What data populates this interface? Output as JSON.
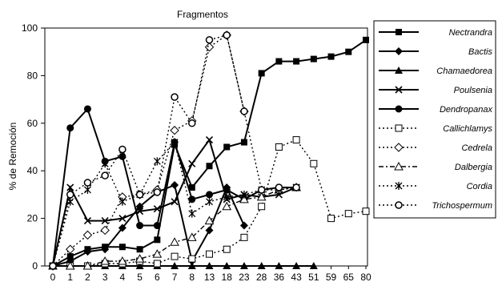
{
  "chart_data": {
    "type": "line",
    "title": "Fragmentos",
    "ylabel": "% de Remoción",
    "xlabel": "",
    "categories": [
      "0",
      "1",
      "2",
      "3",
      "4",
      "5",
      "6",
      "7",
      "8",
      "13",
      "18",
      "23",
      "28",
      "36",
      "43",
      "51",
      "59",
      "65",
      "80"
    ],
    "ylim": [
      0,
      100
    ],
    "yticks": [
      0,
      20,
      40,
      60,
      80,
      100
    ],
    "grid": false,
    "legend_position": "right",
    "series": [
      {
        "name": "Nectrandra",
        "style": "solid",
        "marker": "filled-square",
        "values": [
          0,
          4,
          7,
          8,
          8,
          7,
          11,
          51,
          33,
          42,
          50,
          52,
          81,
          86,
          86,
          87,
          88,
          90,
          95
        ]
      },
      {
        "name": "Bactis",
        "style": "solid",
        "marker": "filled-diamond",
        "values": [
          0,
          2,
          6,
          7,
          16,
          25,
          31,
          34,
          2,
          15,
          33,
          17,
          null,
          null,
          null,
          null,
          null,
          null,
          null
        ]
      },
      {
        "name": "Chamaedorea",
        "style": "solid",
        "marker": "filled-triangle",
        "values": [
          0,
          0,
          0,
          0,
          0,
          0,
          0,
          0,
          0,
          0,
          0,
          0,
          0,
          0,
          0,
          0,
          null,
          null,
          null
        ]
      },
      {
        "name": "Poulsenia",
        "style": "solid",
        "marker": "x",
        "values": [
          0,
          33,
          19,
          19,
          20,
          23,
          24,
          27,
          43,
          53,
          28,
          30,
          29,
          30,
          33,
          null,
          null,
          null,
          null
        ]
      },
      {
        "name": "Dendropanax",
        "style": "solid",
        "marker": "filled-circle",
        "values": [
          0,
          58,
          66,
          44,
          46,
          17,
          17,
          52,
          28,
          30,
          32,
          28,
          32,
          33,
          33,
          null,
          null,
          null,
          null
        ]
      },
      {
        "name": "Callichlamys",
        "style": "dotted",
        "marker": "open-square",
        "values": [
          0,
          0,
          0,
          1,
          1,
          2,
          1,
          4,
          3,
          5,
          7,
          12,
          25,
          50,
          53,
          43,
          20,
          22,
          23
        ]
      },
      {
        "name": "Cedrela",
        "style": "dotted",
        "marker": "open-diamond",
        "values": [
          0,
          7,
          13,
          15,
          29,
          30,
          32,
          57,
          61,
          92,
          97,
          65,
          null,
          null,
          null,
          null,
          null,
          null,
          null
        ]
      },
      {
        "name": "Dalbergia",
        "style": "dashdot",
        "marker": "open-triangle",
        "values": [
          0,
          0,
          0,
          2,
          2,
          3,
          5,
          10,
          12,
          19,
          25,
          28,
          29,
          32,
          33,
          null,
          null,
          null,
          null
        ]
      },
      {
        "name": "Cordia",
        "style": "dotted",
        "marker": "asterisk",
        "values": [
          0,
          27,
          32,
          43,
          27,
          30,
          44,
          52,
          22,
          27,
          29,
          30,
          32,
          32,
          33,
          null,
          null,
          null,
          null
        ]
      },
      {
        "name": "Trichospermum",
        "style": "dotted",
        "marker": "open-circle",
        "values": [
          0,
          30,
          35,
          38,
          49,
          30,
          31,
          71,
          60,
          95,
          97,
          65,
          32,
          33,
          33,
          null,
          null,
          null,
          null
        ]
      }
    ]
  }
}
